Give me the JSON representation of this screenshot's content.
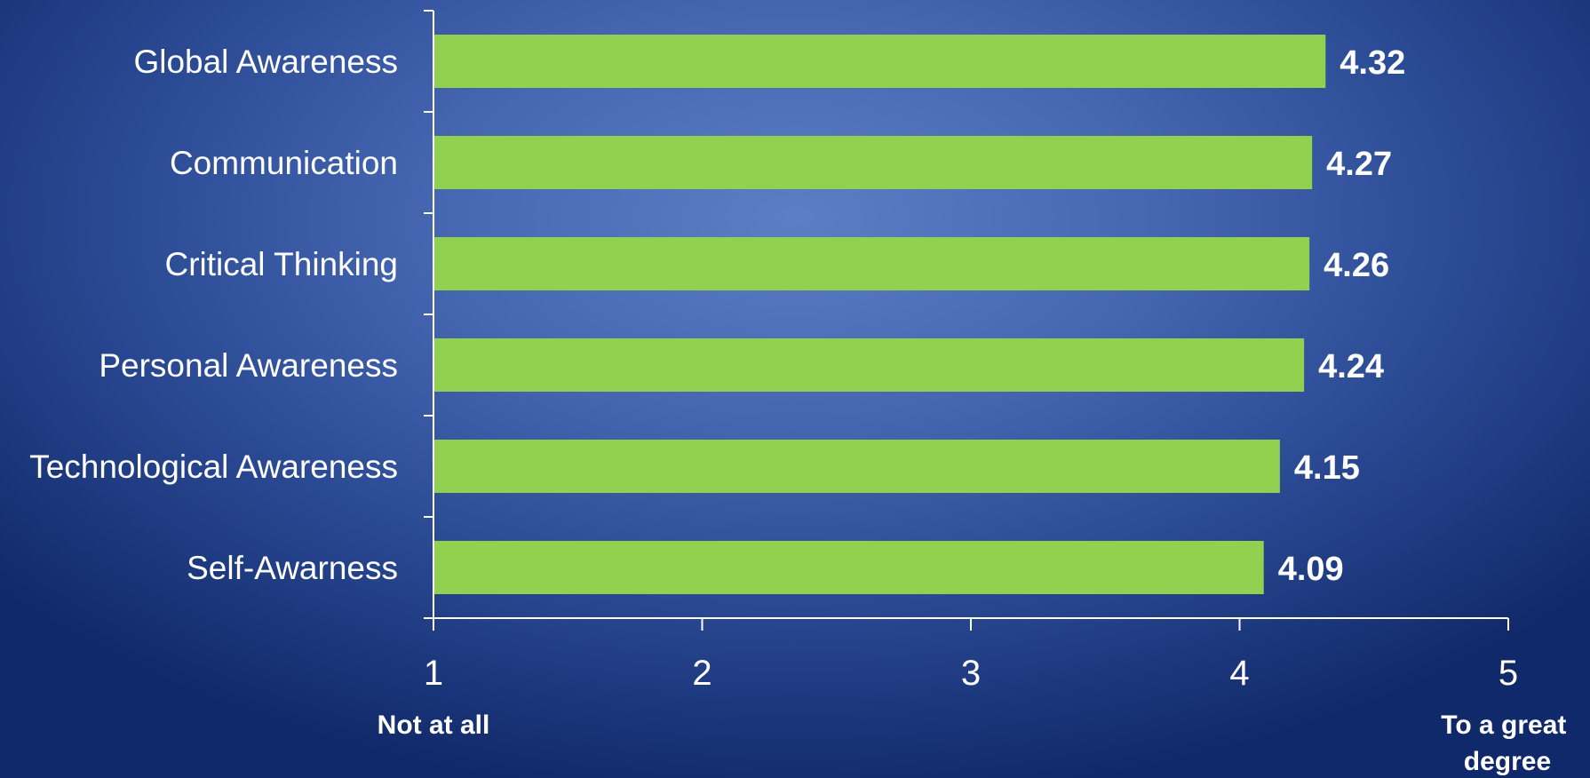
{
  "chart_data": {
    "type": "bar",
    "orientation": "horizontal",
    "title": "",
    "xlabel": "",
    "ylabel": "",
    "categories": [
      "Global Awareness",
      "Communication",
      "Critical Thinking",
      "Personal Awareness",
      "Technological Awareness",
      "Self-Awarness"
    ],
    "values": [
      4.32,
      4.27,
      4.26,
      4.24,
      4.15,
      4.09
    ],
    "data_labels": [
      "4.32",
      "4.27",
      "4.26",
      "4.24",
      "4.15",
      "4.09"
    ],
    "xlim": [
      1,
      5
    ],
    "x_ticks": [
      1,
      2,
      3,
      4,
      5
    ],
    "x_tick_labels": [
      "1",
      "2",
      "3",
      "4",
      "5"
    ],
    "scale_anchor_low": "Not at all",
    "scale_anchor_high": [
      "To a great",
      "degree"
    ],
    "grid": false,
    "legend": "none",
    "colors": {
      "bar": "#92d050",
      "axis": "#ffffff",
      "text": "#ffffff"
    }
  }
}
